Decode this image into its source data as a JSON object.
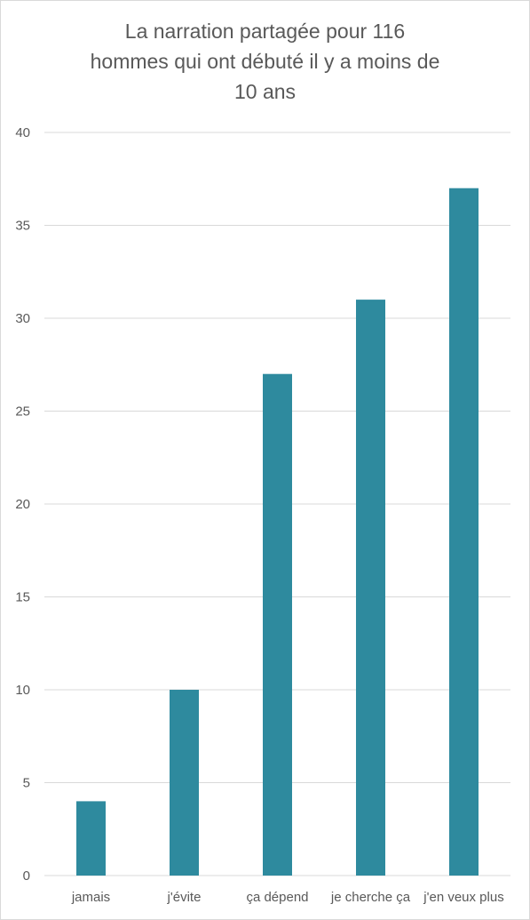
{
  "chart_data": {
    "type": "bar",
    "title_lines": [
      "La narration partagée pour 116",
      "hommes qui ont débuté il y a moins de",
      "10 ans"
    ],
    "categories": [
      "jamais",
      "j'évite",
      "ça dépend",
      "je cherche ça",
      "j'en veux plus"
    ],
    "values": [
      4,
      10,
      27,
      31,
      37
    ],
    "ylim": [
      0,
      40
    ],
    "yticks": [
      0,
      5,
      10,
      15,
      20,
      25,
      30,
      35,
      40
    ],
    "grid": true,
    "legend": "none",
    "bar_color": "#2e8a9e",
    "grid_color": "#d9d9d9",
    "text_color": "#595959"
  }
}
